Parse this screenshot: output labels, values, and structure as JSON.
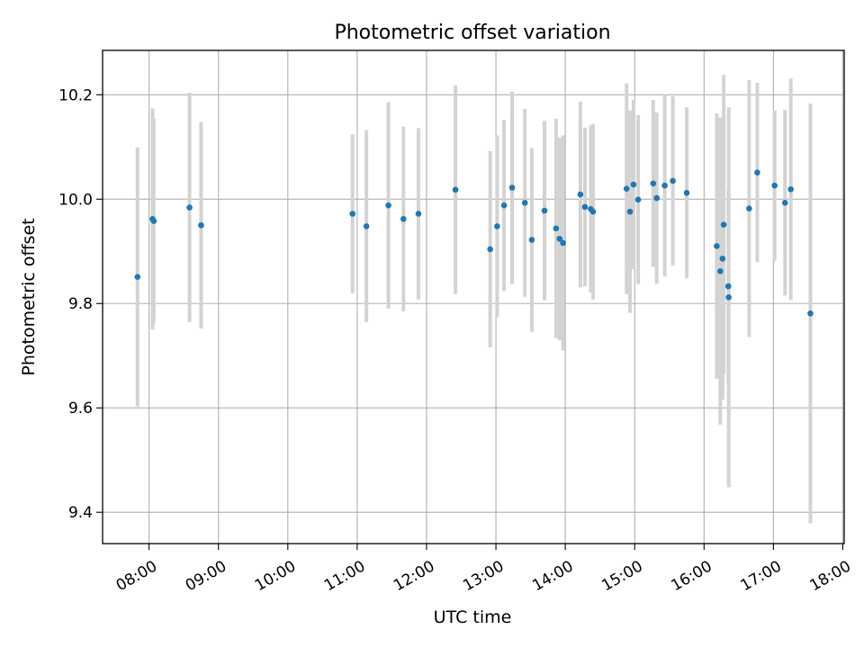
{
  "chart_data": {
    "type": "scatter",
    "title": "Photometric offset variation",
    "xlabel": "UTC time",
    "ylabel": "Photometric offset",
    "x_unit": "hours (UTC)",
    "xlim": [
      7.33,
      18.02
    ],
    "ylim": [
      9.34,
      10.285
    ],
    "x_ticks": [
      {
        "value": 8,
        "label": "08:00"
      },
      {
        "value": 9,
        "label": "09:00"
      },
      {
        "value": 10,
        "label": "10:00"
      },
      {
        "value": 11,
        "label": "11:00"
      },
      {
        "value": 12,
        "label": "12:00"
      },
      {
        "value": 13,
        "label": "13:00"
      },
      {
        "value": 14,
        "label": "14:00"
      },
      {
        "value": 15,
        "label": "15:00"
      },
      {
        "value": 16,
        "label": "16:00"
      },
      {
        "value": 17,
        "label": "17:00"
      },
      {
        "value": 18,
        "label": "18:00"
      }
    ],
    "y_ticks": [
      {
        "value": 9.4,
        "label": "9.4"
      },
      {
        "value": 9.6,
        "label": "9.6"
      },
      {
        "value": 9.8,
        "label": "9.8"
      },
      {
        "value": 10.0,
        "label": "10.0"
      },
      {
        "value": 10.2,
        "label": "10.2"
      }
    ],
    "grid": true,
    "marker_color": "#1f77b4",
    "errorbar_color": "#d3d3d3",
    "points": [
      {
        "t": "07:50",
        "x": 7.833,
        "y": 9.851,
        "lo": 9.603,
        "hi": 10.099
      },
      {
        "t": "08:03",
        "x": 8.05,
        "y": 9.962,
        "lo": 9.75,
        "hi": 10.174
      },
      {
        "t": "08:04",
        "x": 8.067,
        "y": 9.958,
        "lo": 9.762,
        "hi": 10.154
      },
      {
        "t": "08:35",
        "x": 8.583,
        "y": 9.984,
        "lo": 9.764,
        "hi": 10.204
      },
      {
        "t": "08:45",
        "x": 8.75,
        "y": 9.95,
        "lo": 9.752,
        "hi": 10.148
      },
      {
        "t": "10:56",
        "x": 10.933,
        "y": 9.972,
        "lo": 9.82,
        "hi": 10.124
      },
      {
        "t": "11:08",
        "x": 11.133,
        "y": 9.948,
        "lo": 9.764,
        "hi": 10.132
      },
      {
        "t": "11:27",
        "x": 11.45,
        "y": 9.988,
        "lo": 9.79,
        "hi": 10.186
      },
      {
        "t": "11:40",
        "x": 11.667,
        "y": 9.962,
        "lo": 9.785,
        "hi": 10.139
      },
      {
        "t": "11:53",
        "x": 11.883,
        "y": 9.972,
        "lo": 9.808,
        "hi": 10.136
      },
      {
        "t": "12:25",
        "x": 12.417,
        "y": 10.018,
        "lo": 9.818,
        "hi": 10.218
      },
      {
        "t": "12:55",
        "x": 12.917,
        "y": 9.904,
        "lo": 9.716,
        "hi": 10.092
      },
      {
        "t": "13:01",
        "x": 13.017,
        "y": 9.948,
        "lo": 9.774,
        "hi": 10.122
      },
      {
        "t": "13:07",
        "x": 13.117,
        "y": 9.988,
        "lo": 9.824,
        "hi": 10.152
      },
      {
        "t": "13:14",
        "x": 13.233,
        "y": 10.022,
        "lo": 9.838,
        "hi": 10.206
      },
      {
        "t": "13:25",
        "x": 13.417,
        "y": 9.993,
        "lo": 9.813,
        "hi": 10.173
      },
      {
        "t": "13:31",
        "x": 13.517,
        "y": 9.922,
        "lo": 9.746,
        "hi": 10.098
      },
      {
        "t": "13:42",
        "x": 13.7,
        "y": 9.978,
        "lo": 9.806,
        "hi": 10.15
      },
      {
        "t": "13:52",
        "x": 13.867,
        "y": 9.944,
        "lo": 9.734,
        "hi": 10.154
      },
      {
        "t": "13:55",
        "x": 13.917,
        "y": 9.924,
        "lo": 9.73,
        "hi": 10.118
      },
      {
        "t": "13:58",
        "x": 13.967,
        "y": 9.916,
        "lo": 9.71,
        "hi": 10.122
      },
      {
        "t": "14:13",
        "x": 14.217,
        "y": 10.009,
        "lo": 9.831,
        "hi": 10.187
      },
      {
        "t": "14:17",
        "x": 14.283,
        "y": 9.985,
        "lo": 9.833,
        "hi": 10.137
      },
      {
        "t": "14:22",
        "x": 14.367,
        "y": 9.981,
        "lo": 9.821,
        "hi": 10.141
      },
      {
        "t": "14:24",
        "x": 14.4,
        "y": 9.976,
        "lo": 9.808,
        "hi": 10.144
      },
      {
        "t": "14:53",
        "x": 14.883,
        "y": 10.02,
        "lo": 9.818,
        "hi": 10.222
      },
      {
        "t": "14:56",
        "x": 14.933,
        "y": 9.976,
        "lo": 9.782,
        "hi": 10.17
      },
      {
        "t": "14:59",
        "x": 14.983,
        "y": 10.028,
        "lo": 9.866,
        "hi": 10.19
      },
      {
        "t": "15:03",
        "x": 15.05,
        "y": 9.999,
        "lo": 9.837,
        "hi": 10.161
      },
      {
        "t": "15:16",
        "x": 15.267,
        "y": 10.03,
        "lo": 9.87,
        "hi": 10.19
      },
      {
        "t": "15:19",
        "x": 15.317,
        "y": 10.002,
        "lo": 9.838,
        "hi": 10.166
      },
      {
        "t": "15:26",
        "x": 15.433,
        "y": 10.026,
        "lo": 9.852,
        "hi": 10.2
      },
      {
        "t": "15:33",
        "x": 15.55,
        "y": 10.035,
        "lo": 9.873,
        "hi": 10.197
      },
      {
        "t": "15:45",
        "x": 15.75,
        "y": 10.012,
        "lo": 9.848,
        "hi": 10.176
      },
      {
        "t": "16:11",
        "x": 16.183,
        "y": 9.91,
        "lo": 9.656,
        "hi": 10.164
      },
      {
        "t": "16:14",
        "x": 16.233,
        "y": 9.862,
        "lo": 9.568,
        "hi": 10.156
      },
      {
        "t": "16:16",
        "x": 16.267,
        "y": 9.886,
        "lo": 9.616,
        "hi": 10.156
      },
      {
        "t": "16:17",
        "x": 16.283,
        "y": 9.951,
        "lo": 9.664,
        "hi": 10.238
      },
      {
        "t": "16:21",
        "x": 16.35,
        "y": 9.833,
        "lo": 9.648,
        "hi": 10.018
      },
      {
        "t": "16:21b",
        "x": 16.355,
        "y": 9.812,
        "lo": 9.448,
        "hi": 10.176
      },
      {
        "t": "16:39",
        "x": 16.65,
        "y": 9.982,
        "lo": 9.736,
        "hi": 10.228
      },
      {
        "t": "16:46",
        "x": 16.767,
        "y": 10.051,
        "lo": 9.879,
        "hi": 10.223
      },
      {
        "t": "17:01",
        "x": 17.017,
        "y": 10.026,
        "lo": 9.882,
        "hi": 10.17
      },
      {
        "t": "17:10",
        "x": 17.167,
        "y": 9.993,
        "lo": 9.815,
        "hi": 10.171
      },
      {
        "t": "17:15",
        "x": 17.25,
        "y": 10.019,
        "lo": 9.807,
        "hi": 10.231
      },
      {
        "t": "17:32",
        "x": 17.533,
        "y": 9.781,
        "lo": 9.379,
        "hi": 10.183
      }
    ]
  }
}
